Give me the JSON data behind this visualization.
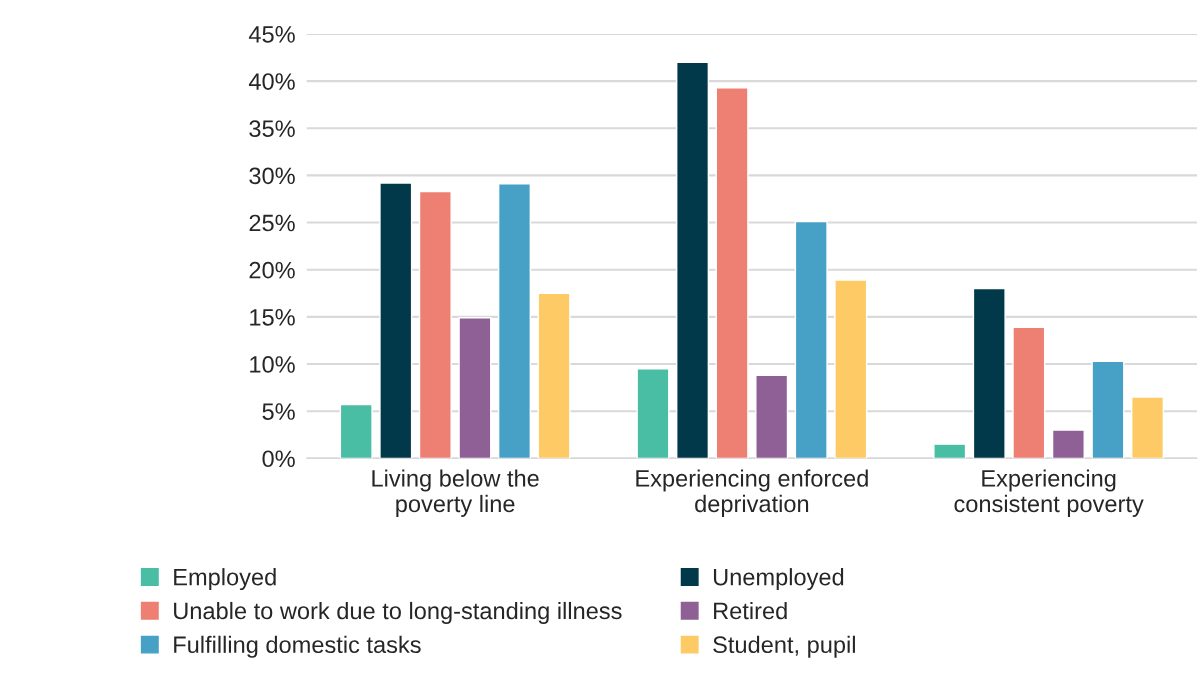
{
  "chart_data": {
    "type": "bar",
    "categories": [
      "Living below the poverty line",
      "Experiencing enforced deprivation",
      "Experiencing consistent poverty"
    ],
    "series": [
      {
        "name": "Employed",
        "color": "#4abda5",
        "values": [
          5.7,
          9.5,
          1.5
        ]
      },
      {
        "name": "Unemployed",
        "color": "#02394a",
        "values": [
          29.2,
          42.0,
          18.0
        ]
      },
      {
        "name": "Unable to work due to long-standing illness",
        "color": "#ee8073",
        "values": [
          28.3,
          39.3,
          13.9
        ]
      },
      {
        "name": "Retired",
        "color": "#8f6095",
        "values": [
          14.9,
          8.8,
          3.0
        ]
      },
      {
        "name": "Fulfilling domestic tasks",
        "color": "#47a1c7",
        "values": [
          29.1,
          25.1,
          10.3
        ]
      },
      {
        "name": "Student, pupil",
        "color": "#fdca65",
        "values": [
          17.5,
          18.9,
          6.5
        ]
      }
    ],
    "ylim": [
      0,
      45
    ],
    "yticks": [
      {
        "value": 0,
        "label": "0%"
      },
      {
        "value": 5,
        "label": "5%"
      },
      {
        "value": 10,
        "label": "10%"
      },
      {
        "value": 15,
        "label": "15%"
      },
      {
        "value": 20,
        "label": "20%"
      },
      {
        "value": 25,
        "label": "25%"
      },
      {
        "value": 30,
        "label": "30%"
      },
      {
        "value": 35,
        "label": "35%"
      },
      {
        "value": 40,
        "label": "40%"
      },
      {
        "value": 45,
        "label": "45%"
      }
    ],
    "grid": "y",
    "legend": "bottom"
  }
}
